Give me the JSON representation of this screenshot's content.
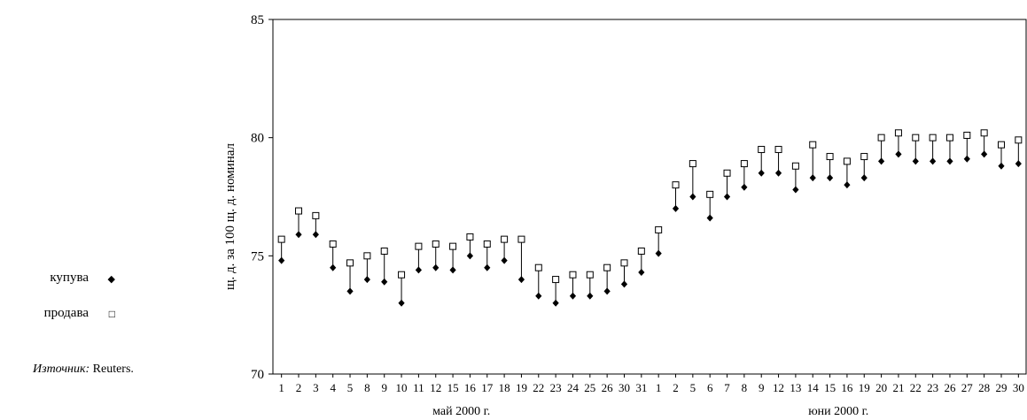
{
  "chart_data": {
    "type": "scatter",
    "ylabel": "щ. д. за 100 щ. д. номинал",
    "ylim": [
      70,
      85
    ],
    "yticks": [
      70,
      75,
      80,
      85
    ],
    "month_labels": [
      "май 2000 г.",
      "юни 2000 г."
    ],
    "categories": [
      "1",
      "2",
      "3",
      "4",
      "5",
      "8",
      "9",
      "10",
      "11",
      "12",
      "15",
      "16",
      "17",
      "18",
      "19",
      "22",
      "23",
      "24",
      "25",
      "26",
      "30",
      "31",
      "1",
      "2",
      "5",
      "6",
      "7",
      "8",
      "9",
      "12",
      "13",
      "14",
      "15",
      "16",
      "19",
      "20",
      "21",
      "22",
      "23",
      "26",
      "27",
      "28",
      "29",
      "30"
    ],
    "month_split_index": 22,
    "series": [
      {
        "name": "купува",
        "marker": "diamond-filled",
        "values": [
          74.8,
          75.9,
          75.9,
          74.5,
          73.5,
          74.0,
          73.9,
          73.0,
          74.4,
          74.5,
          74.4,
          75.0,
          74.5,
          74.8,
          74.0,
          73.3,
          73.0,
          73.3,
          73.3,
          73.5,
          73.8,
          74.3,
          75.1,
          77.0,
          77.5,
          76.6,
          77.5,
          77.9,
          78.5,
          78.5,
          77.8,
          78.3,
          78.3,
          78.0,
          78.3,
          79.0,
          79.3,
          79.0,
          79.0,
          79.0,
          79.1,
          79.3,
          78.8,
          78.9
        ]
      },
      {
        "name": "продава",
        "marker": "square-open",
        "values": [
          75.7,
          76.9,
          76.7,
          75.5,
          74.7,
          75.0,
          75.2,
          74.2,
          75.4,
          75.5,
          75.4,
          75.8,
          75.5,
          75.7,
          75.7,
          74.5,
          74.0,
          74.2,
          74.2,
          74.5,
          74.7,
          75.2,
          76.1,
          78.0,
          78.9,
          77.6,
          78.5,
          78.9,
          79.5,
          79.5,
          78.8,
          79.7,
          79.2,
          79.0,
          79.2,
          80.0,
          80.2,
          80.0,
          80.0,
          80.0,
          80.1,
          80.2,
          79.7,
          79.9
        ]
      }
    ],
    "grid": false,
    "legend_position": "left"
  },
  "legend": {
    "buy_label": "купува",
    "sell_label": "продава",
    "buy_symbol": "◆",
    "sell_symbol": "□"
  },
  "source": {
    "lead": "Източник:",
    "text": " Reuters."
  }
}
